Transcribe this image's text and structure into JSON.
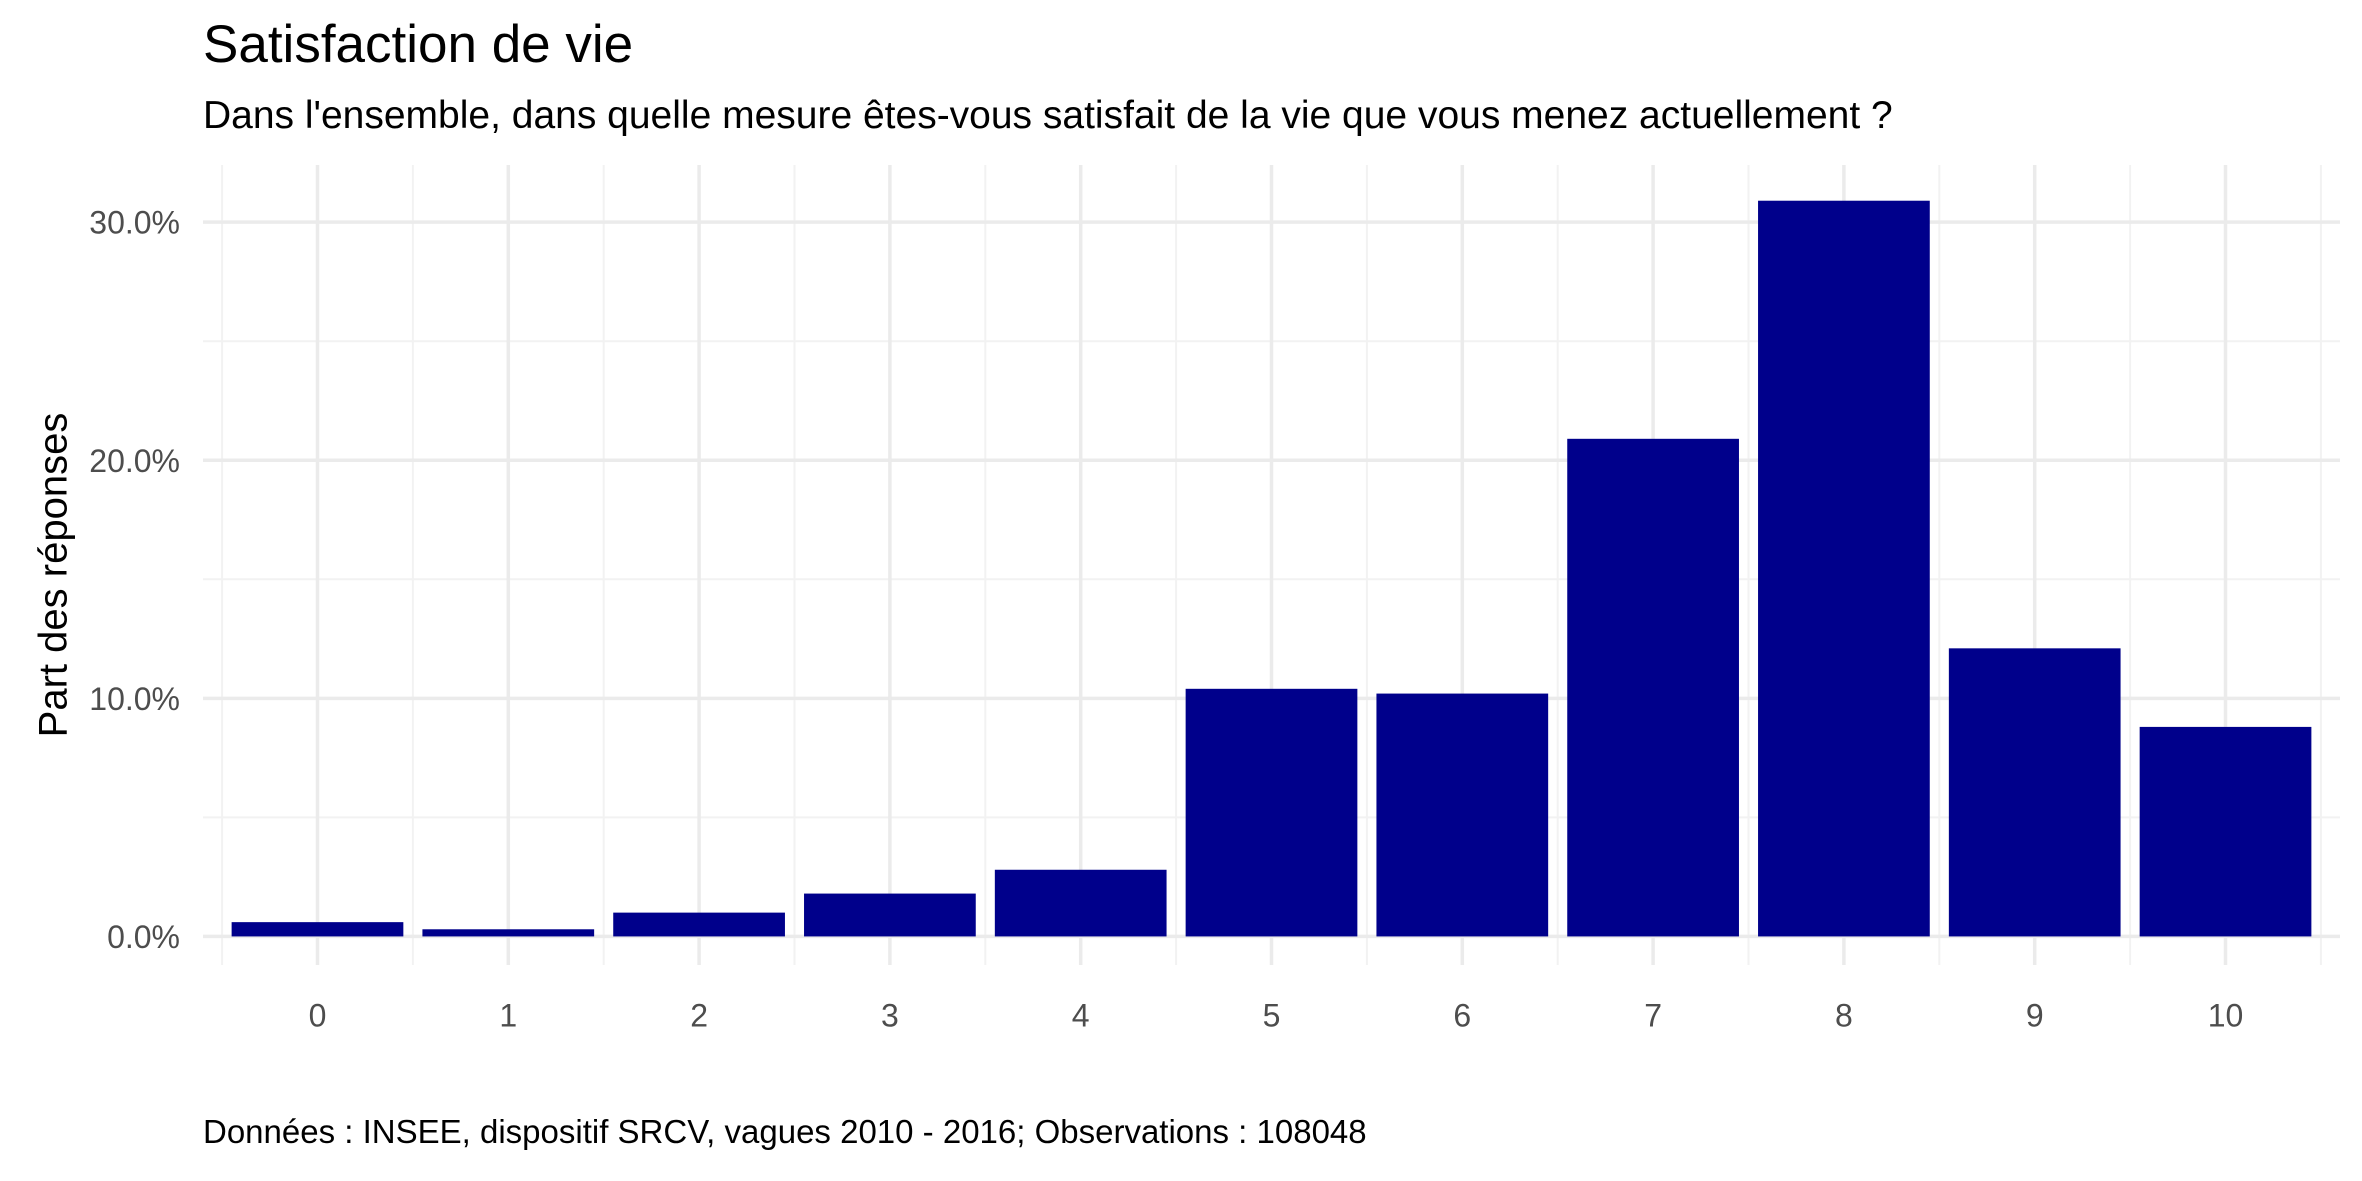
{
  "chart_data": {
    "type": "bar",
    "title": "Satisfaction de vie",
    "subtitle": "Dans l'ensemble, dans quelle mesure êtes-vous satisfait de la vie que vous menez actuellement ?",
    "caption": "Données : INSEE, dispositif SRCV, vagues 2010 - 2016; Observations : 108048",
    "xlabel": "",
    "ylabel": "Part des réponses",
    "categories": [
      "0",
      "1",
      "2",
      "3",
      "4",
      "5",
      "6",
      "7",
      "8",
      "9",
      "10"
    ],
    "values": [
      0.6,
      0.3,
      1.0,
      1.8,
      2.8,
      10.4,
      10.2,
      20.9,
      30.9,
      12.1,
      8.8
    ],
    "y_ticks": [
      0,
      10,
      20,
      30
    ],
    "y_tick_labels": [
      "0.0%",
      "10.0%",
      "20.0%",
      "30.0%"
    ],
    "ylim": [
      -1.2,
      32.4
    ],
    "grid": true,
    "colors": {
      "bar": "#00008b",
      "grid_major": "#ebebeb",
      "grid_minor": "#f2f2f2",
      "tick_text": "#4d4d4d"
    }
  }
}
